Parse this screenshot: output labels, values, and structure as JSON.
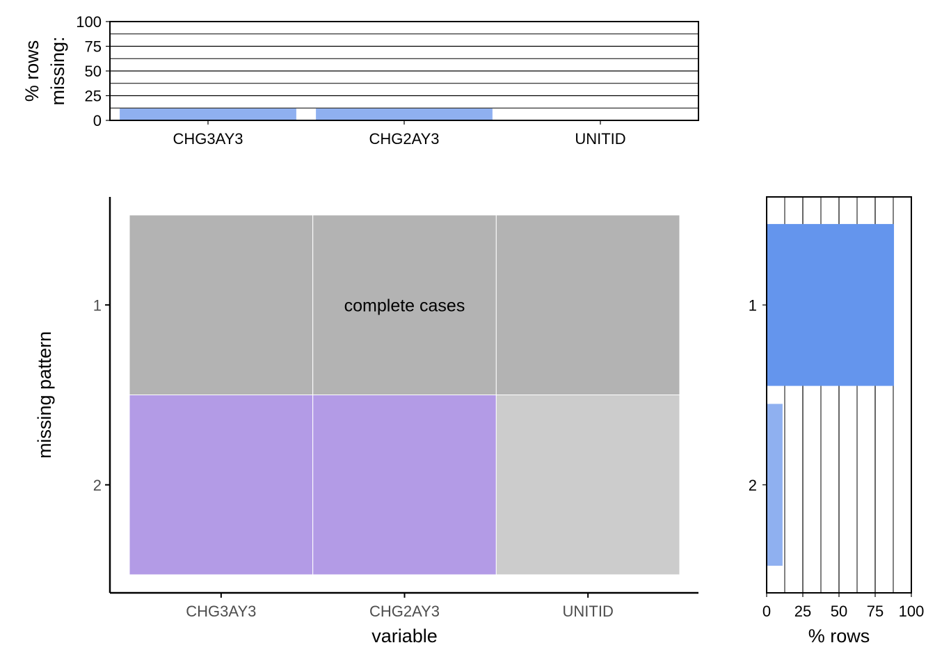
{
  "chart_data": [
    {
      "type": "bar",
      "panel": "top",
      "ylabel_lines": [
        "% rows",
        "missing:"
      ],
      "ylim": [
        0,
        100
      ],
      "yticks": [
        0,
        25,
        50,
        75,
        100
      ],
      "grid": true,
      "categories": [
        "CHG3AY3",
        "CHG2AY3",
        "UNITID"
      ],
      "values": [
        12,
        12,
        0
      ],
      "bar_color": "#8fb0f0"
    },
    {
      "type": "heatmap",
      "panel": "main",
      "xlabel": "variable",
      "ylabel": "missing pattern",
      "x_categories": [
        "CHG3AY3",
        "CHG2AY3",
        "UNITID"
      ],
      "y_categories": [
        "1",
        "2"
      ],
      "cells": [
        [
          "#b3b3b3",
          "#b3b3b3",
          "#b3b3b3"
        ],
        [
          "#b39be6",
          "#b39be6",
          "#cccccc"
        ]
      ],
      "annotation": "complete cases"
    },
    {
      "type": "bar",
      "panel": "right",
      "orientation": "horizontal",
      "xlabel": "% rows",
      "xlim": [
        0,
        100
      ],
      "xticks": [
        0,
        25,
        50,
        75,
        100
      ],
      "grid": true,
      "categories": [
        "1",
        "2"
      ],
      "values": [
        88,
        11
      ],
      "colors": [
        "#6495ed",
        "#8fb0f0"
      ]
    }
  ]
}
